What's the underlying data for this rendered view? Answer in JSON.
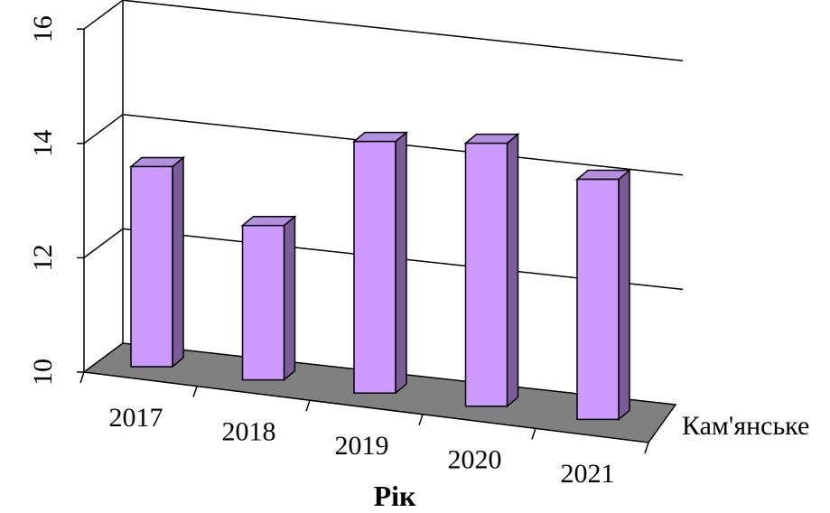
{
  "chart_data": {
    "type": "bar",
    "title": "",
    "xlabel": "Рік",
    "ylabel": "",
    "categories": [
      "2017",
      "2018",
      "2019",
      "2020",
      "2021"
    ],
    "series": [
      {
        "name": "Кам'янське",
        "values": [
          13.5,
          12.7,
          14.4,
          14.6,
          14.2
        ]
      }
    ],
    "ylim": [
      10,
      16
    ],
    "yticks": [
      "10",
      "12",
      "14",
      "16"
    ],
    "grid": true,
    "legend": "none",
    "colors": {
      "bar_front": "#CC99FF",
      "bar_side": "#7A5C99",
      "bar_top": "#B48FE0",
      "floor": "#808080",
      "axis": "#000000"
    }
  }
}
